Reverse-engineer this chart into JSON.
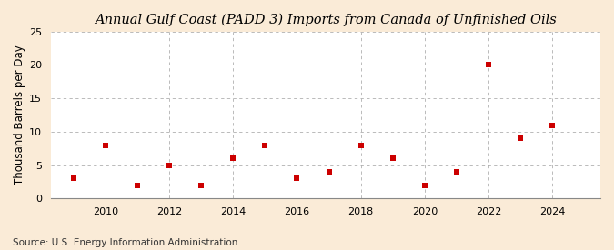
{
  "title": "Annual Gulf Coast (PADD 3) Imports from Canada of Unfinished Oils",
  "ylabel": "Thousand Barrels per Day",
  "source": "Source: U.S. Energy Information Administration",
  "background_color": "#faebd7",
  "plot_background_color": "#ffffff",
  "years": [
    2009,
    2010,
    2011,
    2012,
    2013,
    2014,
    2015,
    2016,
    2017,
    2018,
    2019,
    2020,
    2021,
    2022,
    2023,
    2024
  ],
  "values": [
    3,
    8,
    2,
    5,
    2,
    6,
    8,
    3,
    4,
    8,
    6,
    2,
    4,
    20,
    9,
    11
  ],
  "marker_color": "#cc0000",
  "marker_size": 5,
  "ylim": [
    0,
    25
  ],
  "yticks": [
    0,
    5,
    10,
    15,
    20,
    25
  ],
  "xticks": [
    2010,
    2012,
    2014,
    2016,
    2018,
    2020,
    2022,
    2024
  ],
  "xlim": [
    2008.3,
    2025.5
  ],
  "title_fontsize": 10.5,
  "ylabel_fontsize": 8.5,
  "source_fontsize": 7.5,
  "tick_fontsize": 8
}
